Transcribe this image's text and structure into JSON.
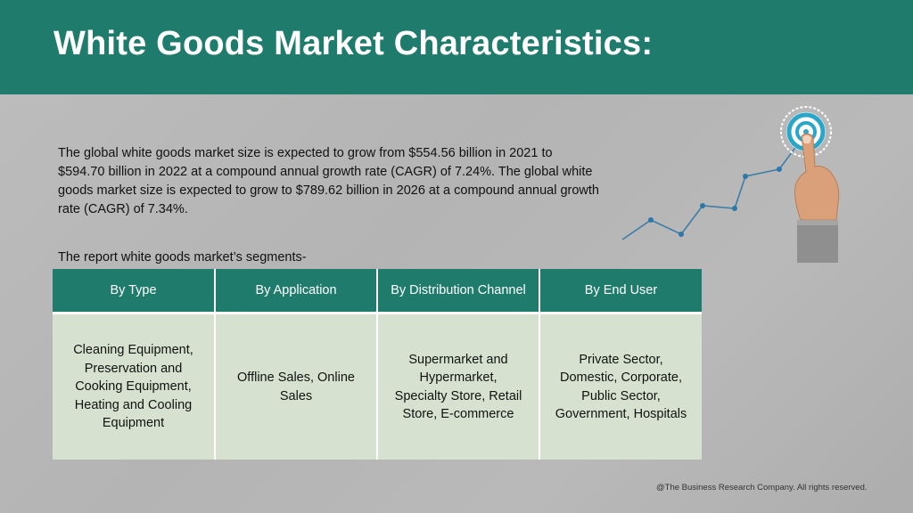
{
  "header": {
    "title": "White Goods Market Characteristics:"
  },
  "intro": {
    "text": "The global white goods market size is expected to grow from $554.56 billion in 2021 to $594.70 billion in 2022 at a compound annual growth rate (CAGR) of 7.24%. The global white goods market size is expected to grow to $789.62 billion in 2026 at a compound annual growth rate (CAGR) of 7.34%."
  },
  "segments": {
    "label": "The report white goods market’s segments-",
    "columns": [
      {
        "header": "By Type",
        "value": "Cleaning Equipment, Preservation and Cooking Equipment, Heating and Cooling Equipment"
      },
      {
        "header": "By Application",
        "value": "Offline Sales, Online Sales"
      },
      {
        "header": "By Distribution Channel",
        "value": "Supermarket and Hypermarket, Specialty Store, Retail Store, E-commerce"
      },
      {
        "header": "By End User",
        "value": "Private Sector, Domestic, Corporate, Public Sector, Government, Hospitals"
      }
    ]
  },
  "decoration": {
    "icon": "target-growth-hand-icon",
    "colors": {
      "accent": "#1f7b6c",
      "line": "#3d7ea6",
      "target": "#2aa6c9"
    }
  },
  "footer": {
    "copyright": "@The Business Research Company. All rights reserved."
  }
}
